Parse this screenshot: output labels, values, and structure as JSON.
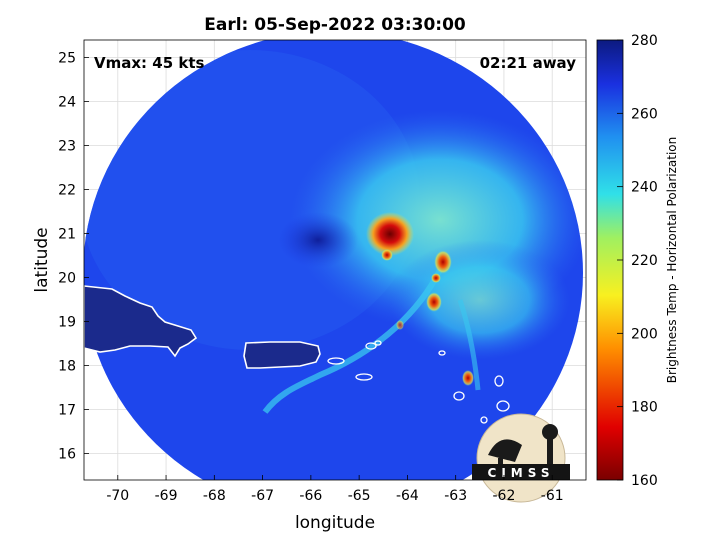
{
  "title": "Earl: 05-Sep-2022 03:30:00",
  "overlay_left": "Vmax: 45 kts",
  "overlay_right": "02:21 away",
  "xlabel": "longitude",
  "ylabel": "latitude",
  "colorbar_label": "Brightness Temp - Horizontal Polarization",
  "logo_text": "CIMSS",
  "x_ticks": [
    "-70",
    "-69",
    "-68",
    "-67",
    "-66",
    "-65",
    "-64",
    "-63",
    "-62",
    "-61"
  ],
  "y_ticks": [
    "25",
    "24",
    "23",
    "22",
    "21",
    "20",
    "19",
    "18",
    "17",
    "16"
  ],
  "colorbar_ticks": [
    "280",
    "260",
    "240",
    "220",
    "200",
    "180",
    "160"
  ],
  "colors": {
    "deep_blue": "#1e3be6",
    "mid_blue": "#2a6cf2",
    "cyan": "#39c8f0",
    "yellow": "#f2e43a",
    "red": "#d40c0c",
    "dark_red": "#6a0000",
    "land": "#1b2a8c"
  },
  "chart_data": {
    "type": "heatmap",
    "title": "Earl: 05-Sep-2022 03:30:00",
    "xlabel": "longitude",
    "ylabel": "latitude",
    "xlim": [
      -70.7,
      -60.3
    ],
    "ylim": [
      15.4,
      25.4
    ],
    "colorbar": {
      "label": "Brightness Temp - Horizontal Polarization",
      "range": [
        160,
        280
      ]
    },
    "storm_center": {
      "lon": -64.2,
      "lat": 20.9
    },
    "grid": true
  }
}
